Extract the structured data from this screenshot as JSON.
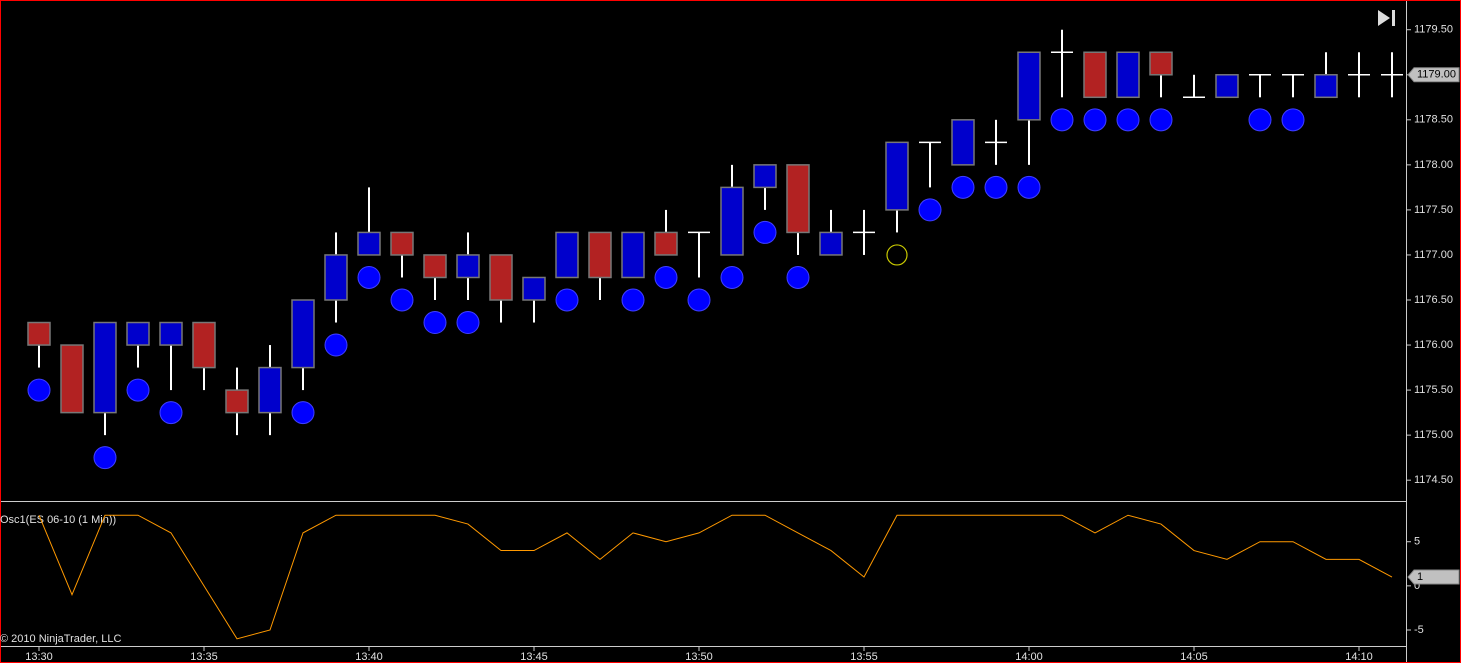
{
  "chart_data": [
    {
      "type": "candlestick",
      "categories": [
        "13:30",
        null,
        null,
        null,
        null,
        "13:35",
        null,
        null,
        null,
        null,
        "13:40",
        null,
        null,
        null,
        null,
        "13:45",
        null,
        null,
        null,
        null,
        "13:50",
        null,
        null,
        null,
        null,
        "13:55",
        null,
        null,
        null,
        null,
        "14:00",
        null,
        null,
        null,
        null,
        "14:05",
        null,
        null,
        null,
        null,
        "14:10",
        null
      ],
      "open": [
        1176.25,
        1176.0,
        1175.25,
        1176.0,
        1176.0,
        1176.25,
        1175.5,
        1175.25,
        1175.75,
        1176.5,
        1177.0,
        1177.25,
        1177.0,
        1176.75,
        1177.0,
        1176.5,
        1176.75,
        1177.25,
        1176.75,
        1177.25,
        1177.25,
        1177.0,
        1177.75,
        1178.0,
        1177.0,
        1177.25,
        1177.5,
        1178.25,
        1178.0,
        1178.25,
        1178.5,
        1179.25,
        1179.25,
        1178.75,
        1179.25,
        1178.75,
        1178.75,
        1179.0,
        1179.0,
        1178.75,
        1179.0,
        1179.0
      ],
      "high": [
        1176.25,
        1176.0,
        1176.25,
        1176.25,
        1176.25,
        1176.25,
        1175.75,
        1176.0,
        1176.5,
        1177.25,
        1177.75,
        1177.25,
        1177.0,
        1177.25,
        1177.0,
        1176.75,
        1177.25,
        1177.25,
        1177.25,
        1177.5,
        1177.25,
        1178.0,
        1178.0,
        1178.0,
        1177.5,
        1177.5,
        1178.25,
        1178.25,
        1178.5,
        1178.5,
        1179.25,
        1179.5,
        1179.25,
        1179.25,
        1179.25,
        1179.0,
        1179.0,
        1179.0,
        1179.0,
        1179.25,
        1179.25,
        1179.25
      ],
      "low": [
        1175.75,
        1175.25,
        1175.0,
        1175.75,
        1175.5,
        1175.5,
        1175.0,
        1175.0,
        1175.5,
        1176.25,
        1177.0,
        1176.75,
        1176.5,
        1176.5,
        1176.25,
        1176.25,
        1176.75,
        1176.5,
        1176.75,
        1177.0,
        1176.75,
        1177.0,
        1177.5,
        1177.0,
        1177.0,
        1177.0,
        1177.25,
        1177.75,
        1178.0,
        1178.0,
        1178.0,
        1178.75,
        1178.75,
        1178.75,
        1178.75,
        1178.75,
        1178.75,
        1178.75,
        1178.75,
        1178.75,
        1178.75,
        1178.75
      ],
      "close": [
        1176.0,
        1175.25,
        1176.25,
        1176.25,
        1176.25,
        1175.75,
        1175.25,
        1175.75,
        1176.5,
        1177.0,
        1177.25,
        1177.0,
        1176.75,
        1177.0,
        1176.5,
        1176.75,
        1177.25,
        1176.75,
        1177.25,
        1177.0,
        1177.25,
        1177.75,
        1178.0,
        1177.25,
        1177.25,
        1177.25,
        1178.25,
        1178.25,
        1178.5,
        1178.25,
        1179.25,
        1179.25,
        1178.75,
        1179.25,
        1179.0,
        1178.75,
        1179.0,
        1179.0,
        1179.0,
        1179.0,
        1179.0,
        1179.0
      ],
      "up_color": "#0000cc",
      "down_color": "#b22222",
      "doji_color": "#ffffff",
      "markers": {
        "color": "#0000ff",
        "values": [
          1175.5,
          null,
          1174.75,
          1175.5,
          1175.25,
          null,
          null,
          null,
          1175.25,
          1176.0,
          1176.75,
          1176.5,
          1176.25,
          1176.25,
          null,
          null,
          1176.5,
          null,
          1176.5,
          1176.75,
          1176.5,
          1176.75,
          1177.25,
          1176.75,
          null,
          null,
          null,
          1177.5,
          1177.75,
          1177.75,
          1177.75,
          1178.5,
          1178.5,
          1178.5,
          1178.5,
          null,
          null,
          1178.5,
          1178.5,
          null,
          null,
          null
        ]
      },
      "hollow_markers": {
        "color": "#c8c800",
        "values": [
          null,
          null,
          null,
          null,
          null,
          null,
          null,
          null,
          null,
          null,
          null,
          null,
          null,
          null,
          null,
          null,
          null,
          null,
          null,
          null,
          null,
          null,
          null,
          null,
          null,
          null,
          1177.0,
          null,
          null,
          null,
          null,
          null,
          null,
          null,
          null,
          null,
          null,
          null,
          null,
          null,
          null,
          null
        ]
      },
      "ylim": [
        1174.28,
        1179.83
      ],
      "yticks": [
        {
          "value": 1174.5,
          "label": "1174.50"
        },
        {
          "value": 1175,
          "label": "1175.00"
        },
        {
          "value": 1175.5,
          "label": "1175.50"
        },
        {
          "value": 1176,
          "label": "1176.00"
        },
        {
          "value": 1176.5,
          "label": "1176.50"
        },
        {
          "value": 1177,
          "label": "1177.00"
        },
        {
          "value": 1177.5,
          "label": "1177.50"
        },
        {
          "value": 1178,
          "label": "1178.00"
        },
        {
          "value": 1178.5,
          "label": "1178.50"
        },
        {
          "value": 1179,
          "label": "1179.00"
        },
        {
          "value": 1179.5,
          "label": "1179.50"
        }
      ],
      "last_value": {
        "value": 1179,
        "label": "1179.00"
      }
    },
    {
      "type": "line",
      "title": "Osc1(ES 06-10 (1 Min))",
      "copyright": "© 2010 NinjaTrader, LLC",
      "color": "#ff9900",
      "values": [
        8,
        -1,
        8,
        8,
        6,
        0,
        -6,
        -5,
        6,
        8,
        8,
        8,
        8,
        7,
        4,
        4,
        6,
        3,
        6,
        5,
        6,
        8,
        8,
        6,
        4,
        1,
        8,
        8,
        8,
        8,
        8,
        8,
        6,
        8,
        7,
        4,
        3,
        5,
        5,
        3,
        3,
        1
      ],
      "ylim": [
        -6.7,
        9.5
      ],
      "yticks": [
        -5,
        0,
        5
      ],
      "last_value": 1
    }
  ]
}
